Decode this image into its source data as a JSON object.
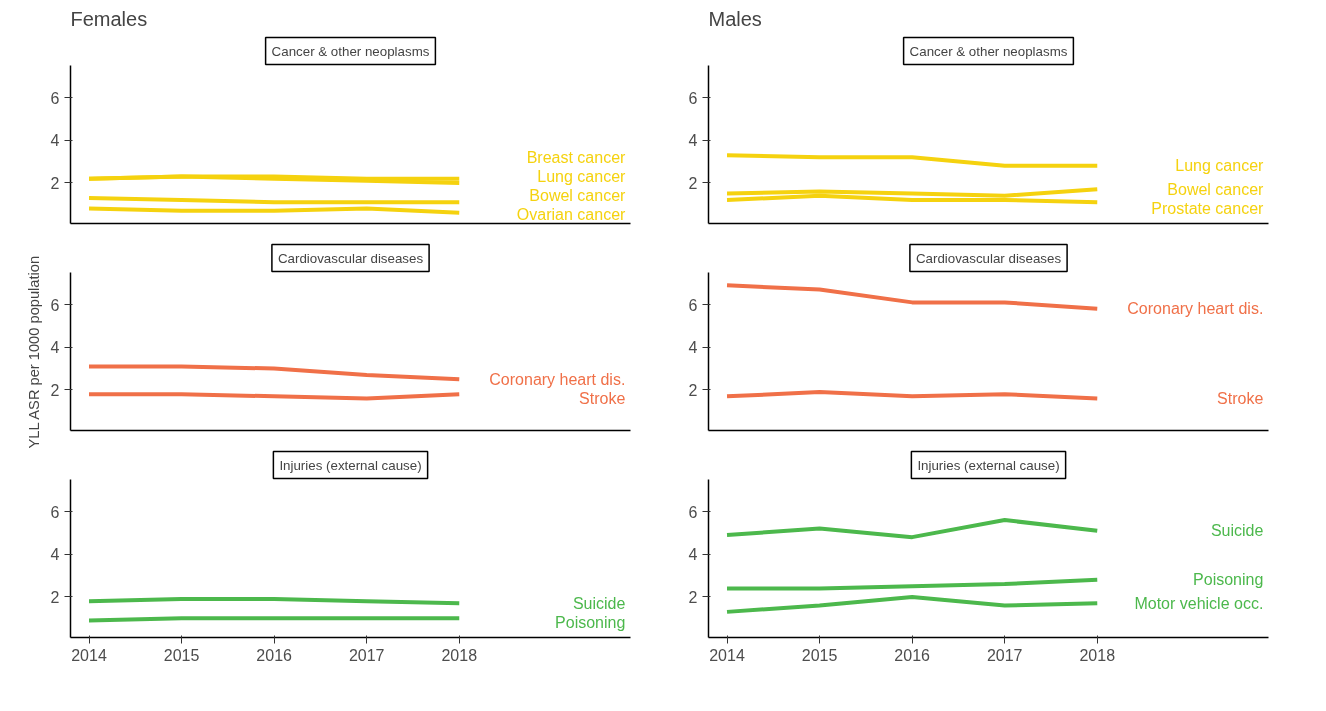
{
  "chart_data": [
    {
      "type": "line",
      "title": "Females",
      "subtitle": "Cancer & other neoplasms",
      "x": [
        2014,
        2015,
        2016,
        2017,
        2018
      ],
      "xlim": [
        2013.8,
        2019.85
      ],
      "xticks": [
        2014,
        2015,
        2016,
        2017,
        2018
      ],
      "ylim": [
        0.1,
        7.5
      ],
      "yticks": [
        2,
        4,
        6
      ],
      "tick_labels": "y",
      "grid": false,
      "legend": "right",
      "line_style": "solid",
      "marker": "none",
      "series": [
        {
          "name": "Breast cancer",
          "color": "#f5d20f",
          "values": [
            2.2,
            2.3,
            2.3,
            2.2,
            2.2
          ]
        },
        {
          "name": "Lung cancer",
          "color": "#f5d20f",
          "values": [
            2.2,
            2.3,
            2.2,
            2.1,
            2.0
          ]
        },
        {
          "name": "Bowel cancer",
          "color": "#f5d20f",
          "values": [
            1.3,
            1.2,
            1.1,
            1.1,
            1.1
          ]
        },
        {
          "name": "Ovarian cancer",
          "color": "#f5d20f",
          "values": [
            0.8,
            0.7,
            0.7,
            0.8,
            0.6
          ]
        }
      ]
    },
    {
      "type": "line",
      "title": "Males",
      "subtitle": "Cancer & other neoplasms",
      "x": [
        2014,
        2015,
        2016,
        2017,
        2018
      ],
      "xlim": [
        2013.8,
        2019.85
      ],
      "xticks": [
        2014,
        2015,
        2016,
        2017,
        2018
      ],
      "ylim": [
        0.1,
        7.5
      ],
      "yticks": [
        2,
        4,
        6
      ],
      "tick_labels": "y",
      "grid": false,
      "legend": "right",
      "line_style": "solid",
      "marker": "none",
      "series": [
        {
          "name": "Lung cancer",
          "color": "#f5d20f",
          "values": [
            3.3,
            3.2,
            3.2,
            2.8,
            2.8
          ]
        },
        {
          "name": "Bowel cancer",
          "color": "#f5d20f",
          "values": [
            1.5,
            1.6,
            1.5,
            1.4,
            1.7
          ]
        },
        {
          "name": "Prostate cancer",
          "color": "#f5d20f",
          "values": [
            1.2,
            1.4,
            1.2,
            1.2,
            1.1
          ]
        }
      ]
    },
    {
      "type": "line",
      "subtitle": "Cardiovascular diseases",
      "ylabel": "YLL ASR per 1000 population",
      "x": [
        2014,
        2015,
        2016,
        2017,
        2018
      ],
      "xlim": [
        2013.8,
        2019.85
      ],
      "xticks": [
        2014,
        2015,
        2016,
        2017,
        2018
      ],
      "ylim": [
        0.1,
        7.5
      ],
      "yticks": [
        2,
        4,
        6
      ],
      "tick_labels": "y",
      "grid": false,
      "legend": "right",
      "line_style": "solid",
      "marker": "none",
      "series": [
        {
          "name": "Coronary heart dis.",
          "color": "#f07048",
          "values": [
            3.1,
            3.1,
            3.0,
            2.7,
            2.5
          ]
        },
        {
          "name": "Stroke",
          "color": "#f07048",
          "values": [
            1.8,
            1.8,
            1.7,
            1.6,
            1.8
          ]
        }
      ]
    },
    {
      "type": "line",
      "subtitle": "Cardiovascular diseases",
      "x": [
        2014,
        2015,
        2016,
        2017,
        2018
      ],
      "xlim": [
        2013.8,
        2019.85
      ],
      "xticks": [
        2014,
        2015,
        2016,
        2017,
        2018
      ],
      "ylim": [
        0.1,
        7.5
      ],
      "yticks": [
        2,
        4,
        6
      ],
      "tick_labels": "y",
      "grid": false,
      "legend": "right",
      "line_style": "solid",
      "marker": "none",
      "series": [
        {
          "name": "Coronary heart dis.",
          "color": "#f07048",
          "values": [
            6.9,
            6.7,
            6.1,
            6.1,
            5.8
          ]
        },
        {
          "name": "Stroke",
          "color": "#f07048",
          "values": [
            1.7,
            1.9,
            1.7,
            1.8,
            1.6
          ]
        }
      ]
    },
    {
      "type": "line",
      "subtitle": "Injuries (external cause)",
      "x": [
        2014,
        2015,
        2016,
        2017,
        2018
      ],
      "xlim": [
        2013.8,
        2019.85
      ],
      "xticks": [
        2014,
        2015,
        2016,
        2017,
        2018
      ],
      "ylim": [
        0.1,
        7.5
      ],
      "yticks": [
        2,
        4,
        6
      ],
      "grid": false,
      "legend": "right",
      "line_style": "solid",
      "marker": "none",
      "series": [
        {
          "name": "Suicide",
          "color": "#4cb84c",
          "values": [
            1.8,
            1.9,
            1.9,
            1.8,
            1.7
          ]
        },
        {
          "name": "Poisoning",
          "color": "#4cb84c",
          "values": [
            0.9,
            1.0,
            1.0,
            1.0,
            1.0
          ]
        }
      ]
    },
    {
      "type": "line",
      "subtitle": "Injuries (external cause)",
      "x": [
        2014,
        2015,
        2016,
        2017,
        2018
      ],
      "xlim": [
        2013.8,
        2019.85
      ],
      "xticks": [
        2014,
        2015,
        2016,
        2017,
        2018
      ],
      "ylim": [
        0.1,
        7.5
      ],
      "yticks": [
        2,
        4,
        6
      ],
      "grid": false,
      "legend": "right",
      "line_style": "solid",
      "marker": "none",
      "series": [
        {
          "name": "Suicide",
          "color": "#4cb84c",
          "values": [
            4.9,
            5.2,
            4.8,
            5.6,
            5.1
          ]
        },
        {
          "name": "Poisoning",
          "color": "#4cb84c",
          "values": [
            2.4,
            2.4,
            2.5,
            2.6,
            2.8
          ]
        },
        {
          "name": "Motor vehicle occ.",
          "color": "#4cb84c",
          "values": [
            1.3,
            1.6,
            2.0,
            1.6,
            1.7
          ]
        }
      ]
    }
  ]
}
